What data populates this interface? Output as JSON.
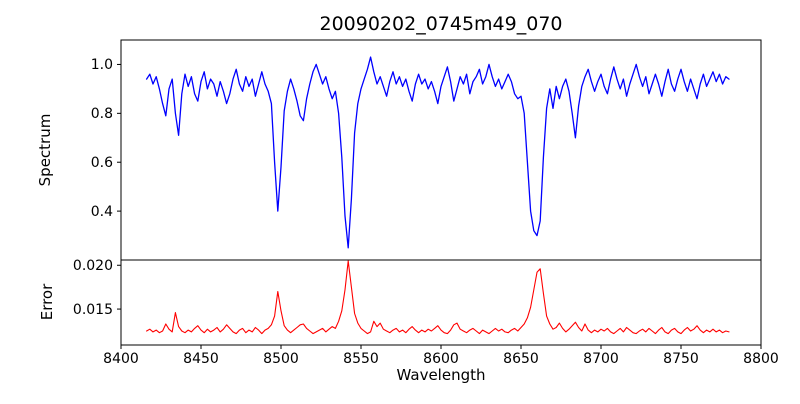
{
  "chart_data": {
    "type": "line",
    "title": "20090202_0745m49_070",
    "xlabel": "Wavelength",
    "grid": false,
    "legend": "none",
    "xlim": [
      8400,
      8800
    ],
    "xticks": [
      8400,
      8450,
      8500,
      8550,
      8600,
      8650,
      8700,
      8750,
      8800
    ],
    "xtick_labels": [
      "8400",
      "8450",
      "8500",
      "8550",
      "8600",
      "8650",
      "8700",
      "8750",
      "8800"
    ],
    "x": [
      8416,
      8418,
      8420,
      8422,
      8424,
      8426,
      8428,
      8430,
      8432,
      8434,
      8436,
      8438,
      8440,
      8442,
      8444,
      8446,
      8448,
      8450,
      8452,
      8454,
      8456,
      8458,
      8460,
      8462,
      8464,
      8466,
      8468,
      8470,
      8472,
      8474,
      8476,
      8478,
      8480,
      8482,
      8484,
      8486,
      8488,
      8490,
      8492,
      8494,
      8496,
      8498,
      8500,
      8502,
      8504,
      8506,
      8508,
      8510,
      8512,
      8514,
      8516,
      8518,
      8520,
      8522,
      8524,
      8526,
      8528,
      8530,
      8532,
      8534,
      8536,
      8538,
      8540,
      8542,
      8544,
      8546,
      8548,
      8550,
      8552,
      8554,
      8556,
      8558,
      8560,
      8562,
      8564,
      8566,
      8568,
      8570,
      8572,
      8574,
      8576,
      8578,
      8580,
      8582,
      8584,
      8586,
      8588,
      8590,
      8592,
      8594,
      8596,
      8598,
      8600,
      8602,
      8604,
      8606,
      8608,
      8610,
      8612,
      8614,
      8616,
      8618,
      8620,
      8622,
      8624,
      8626,
      8628,
      8630,
      8632,
      8634,
      8636,
      8638,
      8640,
      8642,
      8644,
      8646,
      8648,
      8650,
      8652,
      8654,
      8656,
      8658,
      8660,
      8662,
      8664,
      8666,
      8668,
      8670,
      8672,
      8674,
      8676,
      8678,
      8680,
      8682,
      8684,
      8686,
      8688,
      8690,
      8692,
      8694,
      8696,
      8698,
      8700,
      8702,
      8704,
      8706,
      8708,
      8710,
      8712,
      8714,
      8716,
      8718,
      8720,
      8722,
      8724,
      8726,
      8728,
      8730,
      8732,
      8734,
      8736,
      8738,
      8740,
      8742,
      8744,
      8746,
      8748,
      8750,
      8752,
      8754,
      8756,
      8758,
      8760,
      8762,
      8764,
      8766,
      8768,
      8770,
      8772,
      8774,
      8776,
      8778,
      8780
    ],
    "panels": [
      {
        "name": "spectrum",
        "ylabel": "Spectrum",
        "color": "#0000ff",
        "line_width": 1.3,
        "ylim": [
          0.2,
          1.1
        ],
        "yticks": [
          0.4,
          0.6,
          0.8,
          1.0
        ],
        "ytick_labels": [
          "0.4",
          "0.6",
          "0.8",
          "1.0"
        ],
        "features": "CaII triplet absorption lines near 8498, 8542, 8662",
        "y": [
          0.94,
          0.96,
          0.92,
          0.95,
          0.9,
          0.84,
          0.79,
          0.9,
          0.94,
          0.8,
          0.71,
          0.88,
          0.96,
          0.91,
          0.95,
          0.88,
          0.85,
          0.93,
          0.97,
          0.9,
          0.94,
          0.92,
          0.87,
          0.93,
          0.89,
          0.84,
          0.88,
          0.94,
          0.98,
          0.92,
          0.89,
          0.95,
          0.91,
          0.94,
          0.87,
          0.92,
          0.97,
          0.92,
          0.89,
          0.84,
          0.6,
          0.4,
          0.58,
          0.81,
          0.89,
          0.94,
          0.9,
          0.85,
          0.79,
          0.77,
          0.86,
          0.92,
          0.97,
          1.0,
          0.96,
          0.92,
          0.95,
          0.9,
          0.86,
          0.89,
          0.8,
          0.62,
          0.38,
          0.25,
          0.45,
          0.72,
          0.84,
          0.9,
          0.94,
          0.98,
          1.03,
          0.97,
          0.92,
          0.95,
          0.91,
          0.87,
          0.93,
          0.97,
          0.92,
          0.95,
          0.91,
          0.94,
          0.89,
          0.85,
          0.92,
          0.96,
          0.92,
          0.94,
          0.9,
          0.93,
          0.89,
          0.84,
          0.91,
          0.95,
          0.99,
          0.93,
          0.85,
          0.9,
          0.95,
          0.92,
          0.96,
          0.88,
          0.93,
          0.95,
          0.98,
          0.92,
          0.95,
          1.0,
          0.95,
          0.91,
          0.94,
          0.9,
          0.93,
          0.96,
          0.93,
          0.88,
          0.86,
          0.87,
          0.8,
          0.6,
          0.4,
          0.32,
          0.3,
          0.36,
          0.62,
          0.82,
          0.9,
          0.82,
          0.91,
          0.86,
          0.91,
          0.94,
          0.89,
          0.8,
          0.7,
          0.83,
          0.91,
          0.95,
          0.98,
          0.93,
          0.89,
          0.93,
          0.96,
          0.91,
          0.88,
          0.94,
          0.99,
          0.94,
          0.9,
          0.94,
          0.87,
          0.92,
          0.96,
          1.0,
          0.95,
          0.91,
          0.95,
          0.88,
          0.92,
          0.96,
          0.92,
          0.87,
          0.93,
          0.98,
          0.92,
          0.89,
          0.94,
          0.98,
          0.93,
          0.89,
          0.94,
          0.9,
          0.86,
          0.92,
          0.96,
          0.91,
          0.94,
          0.97,
          0.93,
          0.96,
          0.92,
          0.95,
          0.94
        ]
      },
      {
        "name": "error",
        "ylabel": "Error",
        "color": "#ff0000",
        "line_width": 1.1,
        "ylim": [
          0.0109,
          0.0206
        ],
        "yticks": [
          0.015,
          0.02
        ],
        "ytick_labels": [
          "0.015",
          "0.020"
        ],
        "features": "error peaks near 8498 (0.017), 8542 (0.0205), 8662 (0.0196)",
        "y": [
          0.0125,
          0.0127,
          0.0124,
          0.0126,
          0.0123,
          0.0125,
          0.0133,
          0.0127,
          0.0124,
          0.0146,
          0.013,
          0.0125,
          0.0123,
          0.0126,
          0.0124,
          0.0128,
          0.0131,
          0.0126,
          0.0123,
          0.0127,
          0.0124,
          0.0126,
          0.0129,
          0.0124,
          0.0127,
          0.0132,
          0.0128,
          0.0124,
          0.0122,
          0.0126,
          0.0128,
          0.0123,
          0.0126,
          0.0124,
          0.0129,
          0.0126,
          0.0122,
          0.0126,
          0.0128,
          0.0132,
          0.0142,
          0.017,
          0.0148,
          0.0131,
          0.0126,
          0.0123,
          0.0126,
          0.0129,
          0.0132,
          0.0133,
          0.0128,
          0.0125,
          0.0122,
          0.0124,
          0.0126,
          0.0128,
          0.0124,
          0.0127,
          0.013,
          0.0128,
          0.0136,
          0.0148,
          0.0172,
          0.0205,
          0.0175,
          0.0145,
          0.0134,
          0.0128,
          0.0125,
          0.0122,
          0.0124,
          0.0136,
          0.013,
          0.0134,
          0.0127,
          0.0125,
          0.0123,
          0.0126,
          0.0128,
          0.0124,
          0.0126,
          0.0123,
          0.0127,
          0.013,
          0.0126,
          0.0123,
          0.0126,
          0.0124,
          0.0127,
          0.0125,
          0.0128,
          0.0131,
          0.0126,
          0.0123,
          0.0122,
          0.0126,
          0.0132,
          0.0134,
          0.0127,
          0.0125,
          0.0123,
          0.0126,
          0.0128,
          0.0125,
          0.0122,
          0.0126,
          0.0124,
          0.0122,
          0.0125,
          0.0128,
          0.0125,
          0.0127,
          0.0124,
          0.0123,
          0.0126,
          0.0128,
          0.0125,
          0.0129,
          0.0133,
          0.014,
          0.0152,
          0.0172,
          0.0192,
          0.0196,
          0.0168,
          0.0142,
          0.0133,
          0.0127,
          0.0129,
          0.0134,
          0.0128,
          0.0124,
          0.0127,
          0.0131,
          0.0135,
          0.0129,
          0.0125,
          0.0133,
          0.0126,
          0.0123,
          0.0126,
          0.0124,
          0.0127,
          0.0125,
          0.0128,
          0.0124,
          0.0122,
          0.0125,
          0.0128,
          0.0124,
          0.0129,
          0.0126,
          0.0123,
          0.0122,
          0.0125,
          0.0127,
          0.0124,
          0.0128,
          0.0125,
          0.0122,
          0.0126,
          0.0129,
          0.0124,
          0.0122,
          0.0126,
          0.0128,
          0.0124,
          0.0122,
          0.0126,
          0.0129,
          0.0125,
          0.0127,
          0.0131,
          0.0126,
          0.0123,
          0.0126,
          0.0124,
          0.0127,
          0.0124,
          0.0126,
          0.0123,
          0.0125,
          0.0124
        ]
      }
    ]
  }
}
